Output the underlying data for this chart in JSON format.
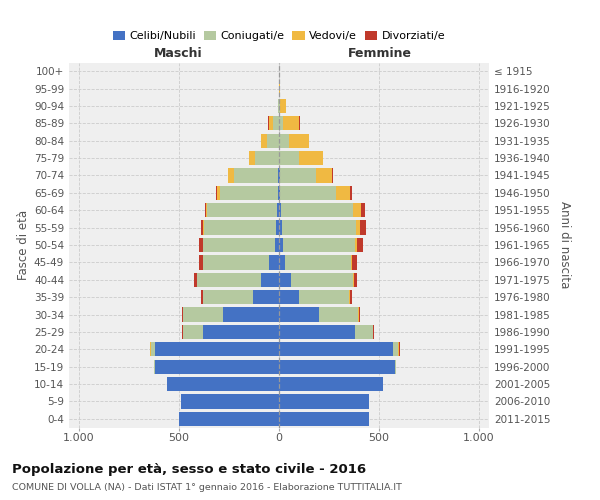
{
  "age_groups": [
    "0-4",
    "5-9",
    "10-14",
    "15-19",
    "20-24",
    "25-29",
    "30-34",
    "35-39",
    "40-44",
    "45-49",
    "50-54",
    "55-59",
    "60-64",
    "65-69",
    "70-74",
    "75-79",
    "80-84",
    "85-89",
    "90-94",
    "95-99",
    "100+"
  ],
  "birth_years": [
    "2011-2015",
    "2006-2010",
    "2001-2005",
    "1996-2000",
    "1991-1995",
    "1986-1990",
    "1981-1985",
    "1976-1980",
    "1971-1975",
    "1966-1970",
    "1961-1965",
    "1956-1960",
    "1951-1955",
    "1946-1950",
    "1941-1945",
    "1936-1940",
    "1931-1935",
    "1926-1930",
    "1921-1925",
    "1916-1920",
    "≤ 1915"
  ],
  "males": {
    "celibi": [
      500,
      490,
      560,
      620,
      620,
      380,
      280,
      130,
      90,
      50,
      20,
      15,
      10,
      5,
      5,
      0,
      0,
      0,
      0,
      0,
      0
    ],
    "coniugati": [
      0,
      0,
      0,
      5,
      20,
      100,
      200,
      250,
      320,
      330,
      360,
      360,
      350,
      290,
      220,
      120,
      60,
      30,
      5,
      0,
      0
    ],
    "vedovi": [
      0,
      0,
      0,
      0,
      5,
      0,
      0,
      0,
      0,
      0,
      0,
      5,
      5,
      15,
      30,
      30,
      30,
      20,
      0,
      0,
      0
    ],
    "divorziati": [
      0,
      0,
      0,
      0,
      0,
      5,
      5,
      10,
      15,
      20,
      20,
      10,
      5,
      5,
      0,
      0,
      0,
      5,
      0,
      0,
      0
    ]
  },
  "females": {
    "nubili": [
      450,
      450,
      520,
      580,
      570,
      380,
      200,
      100,
      60,
      30,
      20,
      15,
      10,
      5,
      5,
      0,
      0,
      0,
      0,
      0,
      0
    ],
    "coniugate": [
      0,
      0,
      0,
      5,
      25,
      90,
      195,
      250,
      310,
      330,
      360,
      370,
      360,
      280,
      180,
      100,
      50,
      20,
      5,
      0,
      0
    ],
    "vedove": [
      0,
      0,
      0,
      0,
      5,
      0,
      5,
      5,
      5,
      5,
      10,
      20,
      40,
      70,
      80,
      120,
      100,
      80,
      30,
      5,
      0
    ],
    "divorziate": [
      0,
      0,
      0,
      0,
      5,
      5,
      5,
      10,
      15,
      25,
      30,
      30,
      20,
      10,
      5,
      0,
      0,
      5,
      0,
      0,
      0
    ]
  },
  "color_celibi": "#4472c4",
  "color_coniugati": "#b5c9a0",
  "color_vedovi": "#f0b942",
  "color_divorziati": "#c0392b",
  "bg_color": "#efefef",
  "grid_color": "#cccccc",
  "title_main": "Popolazione per età, sesso e stato civile - 2016",
  "title_sub": "COMUNE DI VOLLA (NA) - Dati ISTAT 1° gennaio 2016 - Elaborazione TUTTITALIA.IT",
  "label_maschi": "Maschi",
  "label_femmine": "Femmine",
  "ylabel_left": "Fasce di età",
  "ylabel_right": "Anni di nascita",
  "legend_labels": [
    "Celibi/Nubili",
    "Coniugati/e",
    "Vedovi/e",
    "Divorziati/e"
  ],
  "xlim": 1050,
  "xticklabels": [
    "1.000",
    "500",
    "0",
    "500",
    "1.000"
  ]
}
